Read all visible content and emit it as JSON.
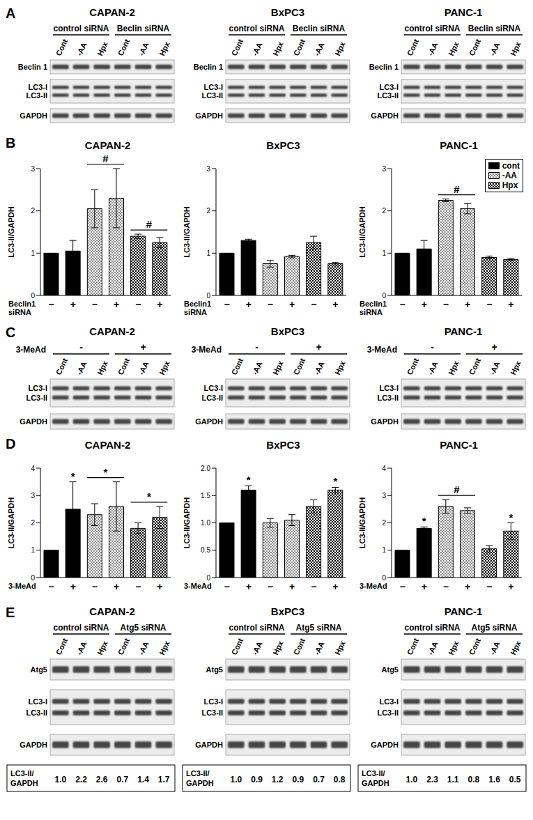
{
  "panel_labels": [
    "A",
    "B",
    "C",
    "D",
    "E"
  ],
  "blots": {
    "A": [
      {
        "title": "CAPAN-2",
        "groups": [
          "control siRNA",
          "Beclin siRNA"
        ],
        "lanes": [
          "Cont",
          "-AA",
          "Hpx",
          "Cont",
          "-AA",
          "Hpx"
        ],
        "rows": [
          [
            "Beclin 1"
          ],
          [
            "LC3-I",
            "LC3-II"
          ],
          [
            "GAPDH"
          ]
        ]
      },
      {
        "title": "BxPC3",
        "groups": [
          "control siRNA",
          "Beclin siRNA"
        ],
        "lanes": [
          "Cont",
          "-AA",
          "Hpx",
          "Cont",
          "-AA",
          "Hpx"
        ],
        "rows": [
          [
            "Beclin 1"
          ],
          [
            "LC3-I",
            "LC3-II"
          ],
          [
            "GAPDH"
          ]
        ]
      },
      {
        "title": "PANC-1",
        "groups": [
          "control siRNA",
          "Beclin siRNA"
        ],
        "lanes": [
          "Cont",
          "-AA",
          "Hpx",
          "Cont",
          "-AA",
          "Hpx"
        ],
        "rows": [
          [
            "Beclin 1"
          ],
          [
            "LC3-I",
            "LC3-II"
          ],
          [
            "GAPDH"
          ]
        ]
      }
    ],
    "C": [
      {
        "title": "CAPAN-2",
        "header": "3-MeAd",
        "groups": [
          "-",
          "+"
        ],
        "lanes": [
          "Cont",
          "-AA",
          "Hpx",
          "Cont",
          "-AA",
          "Hpx"
        ],
        "rows": [
          [
            "LC3-I",
            "LC3-II"
          ],
          [
            "GAPDH"
          ]
        ]
      },
      {
        "title": "BxPC3",
        "header": "3-MeAd",
        "groups": [
          "-",
          "+"
        ],
        "lanes": [
          "Cont",
          "-AA",
          "Hpx",
          "Cont",
          "-AA",
          "Hpx"
        ],
        "rows": [
          [
            "LC3-I",
            "LC3-II"
          ],
          [
            "GAPDH"
          ]
        ]
      },
      {
        "title": "PANC-1",
        "header": "3-MeAd",
        "groups": [
          "-",
          "+"
        ],
        "lanes": [
          "Cont",
          "-AA",
          "Hpx",
          "Cont",
          "-AA",
          "Hpx"
        ],
        "rows": [
          [
            "LC3-I",
            "LC3-II"
          ],
          [
            "GAPDH"
          ]
        ]
      }
    ],
    "E": [
      {
        "title": "CAPAN-2",
        "groups": [
          "control siRNA",
          "Atg5 siRNA"
        ],
        "lanes": [
          "Cont",
          "-AA",
          "Hpx",
          "Cont",
          "-AA",
          "Hpx"
        ],
        "rows": [
          [
            "Atg5"
          ],
          [
            "LC3-I",
            "LC3-II"
          ],
          [
            "GAPDH"
          ]
        ],
        "table": {
          "label": [
            "LC3-II/",
            "GAPDH"
          ],
          "values": [
            "1.0",
            "2.2",
            "2.6",
            "0.7",
            "1.4",
            "1.7"
          ]
        }
      },
      {
        "title": "BxPC3",
        "groups": [
          "control siRNA",
          "Atg5 siRNA"
        ],
        "lanes": [
          "Cont",
          "-AA",
          "Hpx",
          "Cont",
          "-AA",
          "Hpx"
        ],
        "rows": [
          [
            "Atg5"
          ],
          [
            "LC3-I",
            "LC3-II"
          ],
          [
            "GAPDH"
          ]
        ],
        "table": {
          "label": [
            "LC3-II/",
            "GAPDH"
          ],
          "values": [
            "1.0",
            "0.9",
            "1.2",
            "0.9",
            "0.7",
            "0.8"
          ]
        }
      },
      {
        "title": "PANC-1",
        "groups": [
          "control siRNA",
          "Atg5 siRNA"
        ],
        "lanes": [
          "Cont",
          "-AA",
          "Hpx",
          "Cont",
          "-AA",
          "Hpx"
        ],
        "rows": [
          [
            "Atg5"
          ],
          [
            "LC3-I",
            "LC3-II"
          ],
          [
            "GAPDH"
          ]
        ],
        "table": {
          "label": [
            "LC3-II/",
            "GAPDH"
          ],
          "values": [
            "1.0",
            "2.3",
            "1.1",
            "0.8",
            "1.6",
            "0.5"
          ]
        }
      }
    ]
  },
  "chart_data": [
    {
      "type": "bar",
      "title": "CAPAN-2",
      "y_label": "LC3-II/GAPDH",
      "x_label": "Beclin1\nsiRNA",
      "categories": [
        "−",
        "+",
        "−",
        "+",
        "−",
        "+"
      ],
      "ylim": [
        0,
        3
      ],
      "yticks": [
        0,
        1,
        2,
        3
      ],
      "series": [
        {
          "name": "cont",
          "color": "#000000",
          "values": [
            1.0,
            1.05,
            null,
            null,
            null,
            null
          ],
          "errors": [
            null,
            0.25,
            null,
            null,
            null,
            null
          ]
        },
        {
          "name": "-AA",
          "color": "#000000",
          "values": [
            null,
            null,
            2.05,
            2.3,
            null,
            null
          ],
          "errors": [
            null,
            null,
            0.45,
            0.7,
            null,
            null
          ]
        },
        {
          "name": "Hpx",
          "color": "#000000",
          "values": [
            null,
            null,
            null,
            null,
            1.4,
            1.25
          ],
          "errors": [
            null,
            null,
            null,
            null,
            0.05,
            0.12
          ]
        }
      ],
      "annotations": [
        {
          "text": "#",
          "bars": [
            2,
            3
          ]
        },
        {
          "text": "#",
          "bars": [
            4,
            5
          ]
        }
      ]
    },
    {
      "type": "bar",
      "title": "BxPC3",
      "y_label": "LC3-II/GAPDH",
      "x_label": "Beclin1\nsiRNA",
      "categories": [
        "−",
        "+",
        "−",
        "+",
        "−",
        "+"
      ],
      "ylim": [
        0,
        3
      ],
      "yticks": [
        0,
        1,
        2,
        3
      ],
      "series": [
        {
          "name": "cont",
          "color": "#000000",
          "values": [
            1.0,
            1.3,
            null,
            null,
            null,
            null
          ],
          "errors": [
            null,
            0.03,
            null,
            null,
            null,
            null
          ]
        },
        {
          "name": "-AA",
          "color": "#000000",
          "values": [
            null,
            null,
            0.75,
            0.92,
            null,
            null
          ],
          "errors": [
            null,
            null,
            0.08,
            0.03,
            null,
            null
          ]
        },
        {
          "name": "Hpx",
          "color": "#000000",
          "values": [
            null,
            null,
            null,
            null,
            1.25,
            0.75
          ],
          "errors": [
            null,
            null,
            null,
            null,
            0.15,
            0.03
          ]
        }
      ]
    },
    {
      "type": "bar",
      "title": "PANC-1",
      "y_label": "LC3-II/GAPDH",
      "x_label": "Beclin1\nsiRNA",
      "categories": [
        "−",
        "+",
        "−",
        "+",
        "−",
        "+"
      ],
      "ylim": [
        0,
        3
      ],
      "yticks": [
        0,
        1,
        2,
        3
      ],
      "legend": "upper right",
      "series": [
        {
          "name": "cont",
          "color": "#000000",
          "values": [
            1.0,
            1.1,
            null,
            null,
            null,
            null
          ],
          "errors": [
            null,
            0.2,
            null,
            null,
            null,
            null
          ]
        },
        {
          "name": "-AA",
          "color": "#000000",
          "values": [
            null,
            null,
            2.25,
            2.05,
            null,
            null
          ],
          "errors": [
            null,
            null,
            0.03,
            0.12,
            null,
            null
          ]
        },
        {
          "name": "Hpx",
          "color": "#000000",
          "values": [
            null,
            null,
            null,
            null,
            0.9,
            0.85
          ],
          "errors": [
            null,
            null,
            null,
            null,
            0.03,
            0.03
          ]
        }
      ],
      "annotations": [
        {
          "text": "#",
          "bars": [
            2,
            3
          ]
        }
      ]
    },
    {
      "type": "bar",
      "title": "CAPAN-2",
      "y_label": "LC3-II/GAPDH",
      "x_label": "3-MeAd",
      "categories": [
        "−",
        "+",
        "−",
        "+",
        "−",
        "+"
      ],
      "ylim": [
        0,
        4
      ],
      "yticks": [
        0,
        1,
        2,
        3,
        4
      ],
      "series": [
        {
          "name": "cont",
          "color": "#000000",
          "values": [
            1.0,
            2.5,
            null,
            null,
            null,
            null
          ],
          "errors": [
            null,
            1.0,
            null,
            null,
            null,
            null
          ]
        },
        {
          "name": "-AA",
          "color": "#000000",
          "values": [
            null,
            null,
            2.3,
            2.6,
            null,
            null
          ],
          "errors": [
            null,
            null,
            0.4,
            0.9,
            null,
            null
          ]
        },
        {
          "name": "Hpx",
          "color": "#000000",
          "values": [
            null,
            null,
            null,
            null,
            1.8,
            2.2
          ],
          "errors": [
            null,
            null,
            null,
            null,
            0.2,
            0.4
          ]
        }
      ],
      "annotations": [
        {
          "text": "*",
          "bars": [
            1
          ]
        },
        {
          "text": "*",
          "bars": [
            2,
            3
          ]
        },
        {
          "text": "*",
          "bars": [
            4,
            5
          ]
        }
      ]
    },
    {
      "type": "bar",
      "title": "BxPC3",
      "y_label": "LC3-II/GAPDH",
      "x_label": "3-MeAd",
      "categories": [
        "−",
        "+",
        "−",
        "+",
        "−",
        "+"
      ],
      "ylim": [
        0,
        2
      ],
      "yticks": [
        0,
        0.5,
        {
          "value": 1,
          "label": "1.0"
        },
        1.5,
        {
          "value": 2,
          "label": "2.0"
        }
      ],
      "series": [
        {
          "name": "cont",
          "color": "#000000",
          "values": [
            1.0,
            1.6,
            null,
            null,
            null,
            null
          ],
          "errors": [
            null,
            0.08,
            null,
            null,
            null,
            null
          ]
        },
        {
          "name": "-AA",
          "color": "#000000",
          "values": [
            null,
            null,
            1.0,
            1.05,
            null,
            null
          ],
          "errors": [
            null,
            null,
            0.08,
            0.1,
            null,
            null
          ]
        },
        {
          "name": "Hpx",
          "color": "#000000",
          "values": [
            null,
            null,
            null,
            null,
            1.3,
            1.6
          ],
          "errors": [
            null,
            null,
            null,
            null,
            0.12,
            0.05
          ]
        }
      ],
      "annotations": [
        {
          "text": "*",
          "bars": [
            1
          ]
        },
        {
          "text": "*",
          "bars": [
            5
          ]
        }
      ]
    },
    {
      "type": "bar",
      "title": "PANC-1",
      "y_label": "LC3-II/GAPDH",
      "x_label": "3-MeAd",
      "categories": [
        "−",
        "+",
        "−",
        "+",
        "−",
        "+"
      ],
      "ylim": [
        0,
        4
      ],
      "yticks": [
        0,
        1,
        2,
        3,
        4
      ],
      "series": [
        {
          "name": "cont",
          "color": "#000000",
          "values": [
            1.0,
            1.8,
            null,
            null,
            null,
            null
          ],
          "errors": [
            null,
            0.05,
            null,
            null,
            null,
            null
          ]
        },
        {
          "name": "-AA",
          "color": "#000000",
          "values": [
            null,
            null,
            2.6,
            2.45,
            null,
            null
          ],
          "errors": [
            null,
            null,
            0.25,
            0.1,
            null,
            null
          ]
        },
        {
          "name": "Hpx",
          "color": "#000000",
          "values": [
            null,
            null,
            null,
            null,
            1.05,
            1.7
          ],
          "errors": [
            null,
            null,
            null,
            null,
            0.12,
            0.3
          ]
        }
      ],
      "annotations": [
        {
          "text": "*",
          "bars": [
            1
          ]
        },
        {
          "text": "#",
          "bars": [
            2,
            3
          ]
        },
        {
          "text": "*",
          "bars": [
            5
          ]
        }
      ]
    }
  ]
}
